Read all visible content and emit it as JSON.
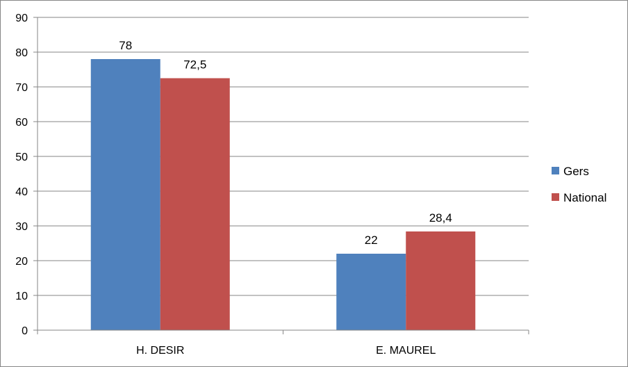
{
  "chart_data": {
    "type": "bar",
    "title": "",
    "xlabel": "",
    "ylabel": "",
    "categories": [
      "H. DESIR",
      "E. MAUREL"
    ],
    "series": [
      {
        "name": "Gers",
        "values": [
          78,
          22
        ],
        "labels": [
          "78",
          "22"
        ],
        "color": "#4F81BD"
      },
      {
        "name": "National",
        "values": [
          72.5,
          28.4
        ],
        "labels": [
          "72,5",
          "28,4"
        ],
        "color": "#C0504D"
      }
    ],
    "ylim": [
      0,
      90
    ],
    "yticks": [
      0,
      10,
      20,
      30,
      40,
      50,
      60,
      70,
      80,
      90
    ],
    "grid": true,
    "legend_position": "right",
    "gridline_color": "#868686",
    "axis_color": "#868686"
  }
}
